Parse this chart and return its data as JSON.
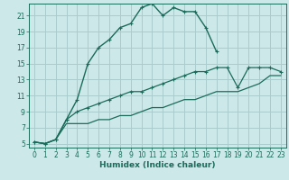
{
  "xlabel": "Humidex (Indice chaleur)",
  "bg_color": "#cce8e8",
  "grid_color": "#aacccc",
  "line_color": "#1a6b5a",
  "xlim": [
    -0.5,
    23.5
  ],
  "ylim": [
    4.5,
    22.5
  ],
  "xticks": [
    0,
    1,
    2,
    3,
    4,
    5,
    6,
    7,
    8,
    9,
    10,
    11,
    12,
    13,
    14,
    15,
    16,
    17,
    18,
    19,
    20,
    21,
    22,
    23
  ],
  "yticks": [
    5,
    7,
    9,
    11,
    13,
    15,
    17,
    19,
    21
  ],
  "line1_x": [
    0,
    1,
    2,
    3,
    4,
    5,
    6,
    7,
    8,
    9,
    10,
    11,
    12,
    13,
    14,
    15,
    16,
    17
  ],
  "line1_y": [
    5.2,
    5.0,
    5.5,
    8.0,
    10.5,
    15.0,
    17.0,
    18.0,
    19.5,
    20.0,
    22.0,
    22.5,
    21.0,
    22.0,
    21.5,
    21.5,
    19.5,
    16.5
  ],
  "line2_x": [
    0,
    1,
    2,
    3,
    4,
    5,
    6,
    7,
    8,
    9,
    10,
    11,
    12,
    13,
    14,
    15,
    16,
    17,
    18,
    19,
    20,
    21,
    22,
    23
  ],
  "line2_y": [
    5.2,
    5.0,
    5.5,
    8.0,
    9.0,
    9.5,
    10.0,
    10.5,
    11.0,
    11.5,
    11.5,
    12.0,
    12.5,
    13.0,
    13.5,
    14.0,
    14.0,
    14.5,
    14.5,
    12.0,
    14.5,
    14.5,
    14.5,
    14.0
  ],
  "line3_x": [
    0,
    1,
    2,
    3,
    4,
    5,
    6,
    7,
    8,
    9,
    10,
    11,
    12,
    13,
    14,
    15,
    16,
    17,
    18,
    19,
    20,
    21,
    22,
    23
  ],
  "line3_y": [
    5.2,
    5.0,
    5.5,
    7.5,
    7.5,
    7.5,
    8.0,
    8.0,
    8.5,
    8.5,
    9.0,
    9.5,
    9.5,
    10.0,
    10.5,
    10.5,
    11.0,
    11.5,
    11.5,
    11.5,
    12.0,
    12.5,
    13.5,
    13.5
  ]
}
